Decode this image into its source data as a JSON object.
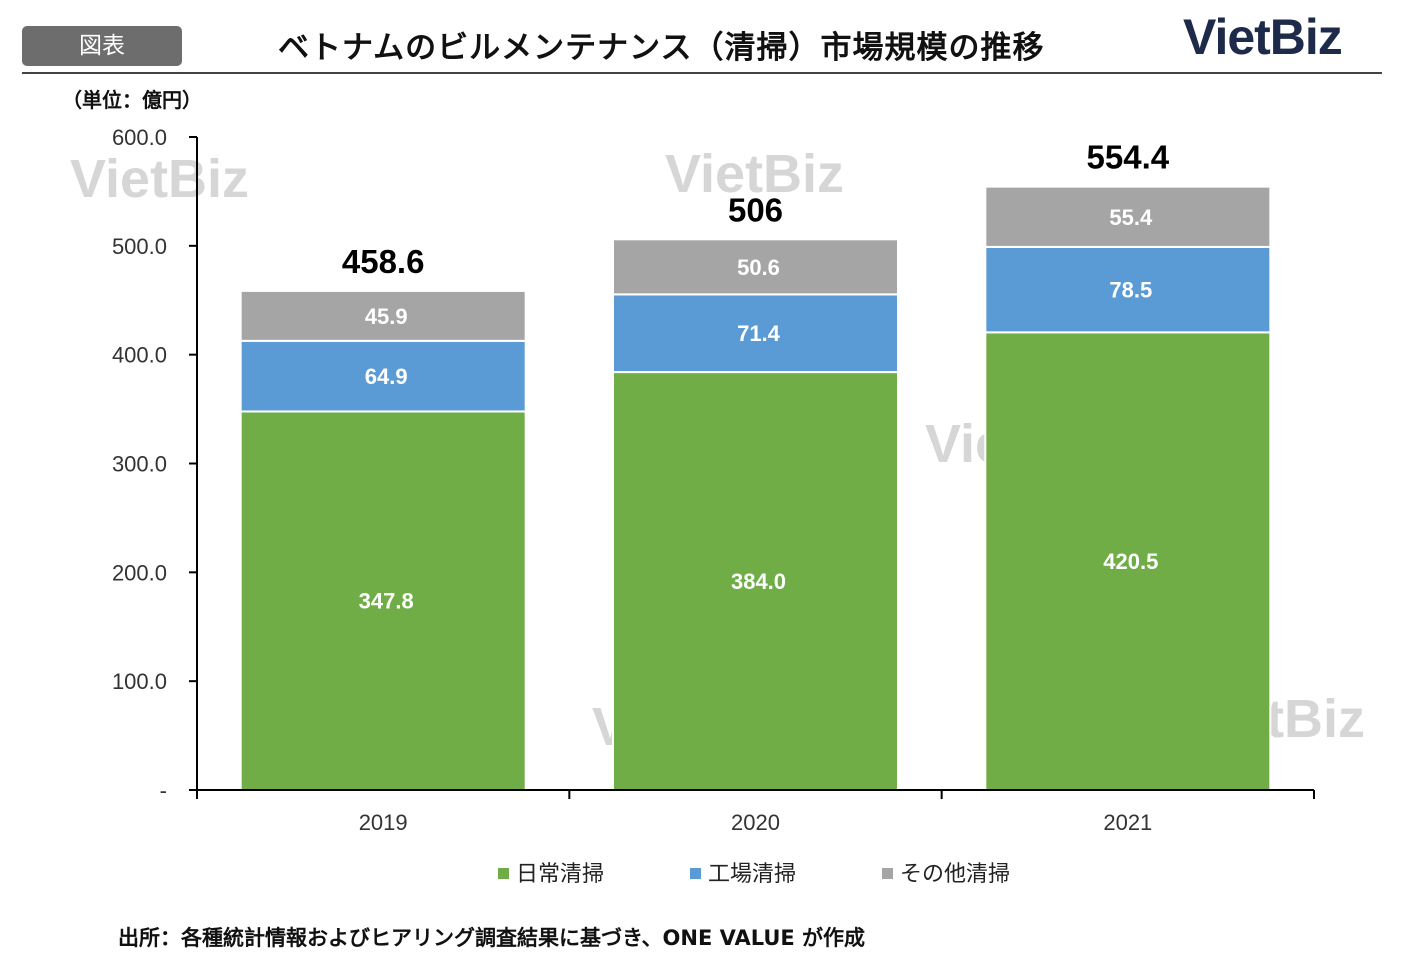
{
  "header": {
    "tag": "図表",
    "title": "ベトナムのビルメンテナンス（清掃）市場規模の推移",
    "brand": "VietBiz",
    "unit": "（単位：億円）"
  },
  "watermark": "VietBiz",
  "chart_data": {
    "type": "bar",
    "stacked": true,
    "categories": [
      "2019",
      "2020",
      "2021"
    ],
    "series": [
      {
        "name": "日常清掃",
        "values": [
          347.8,
          384.0,
          420.5
        ],
        "labels": [
          "347.8",
          "384.0",
          "420.5"
        ],
        "color": "#70ad47"
      },
      {
        "name": "工場清掃",
        "values": [
          64.9,
          71.4,
          78.5
        ],
        "labels": [
          "64.9",
          "71.4",
          "78.5"
        ],
        "color": "#5b9bd5"
      },
      {
        "name": "その他清掃",
        "values": [
          45.9,
          50.6,
          55.4
        ],
        "labels": [
          "45.9",
          "50.6",
          "55.4"
        ],
        "color": "#a5a5a5"
      }
    ],
    "totals": [
      458.6,
      506,
      554.4
    ],
    "total_labels": [
      "458.6",
      "506",
      "554.4"
    ],
    "ylim": [
      0,
      600
    ],
    "yticks": [
      0,
      100,
      200,
      300,
      400,
      500,
      600
    ],
    "ytick_labels": [
      "-",
      "100.0",
      "200.0",
      "300.0",
      "400.0",
      "500.0",
      "600.0"
    ],
    "ylabel": "（単位：億円）",
    "xlabel": "",
    "legend_position": "bottom",
    "grid": false
  },
  "footer": {
    "source": "出所：各種統計情報およびヒアリング調査結果に基づき、ONE VALUE が作成"
  }
}
